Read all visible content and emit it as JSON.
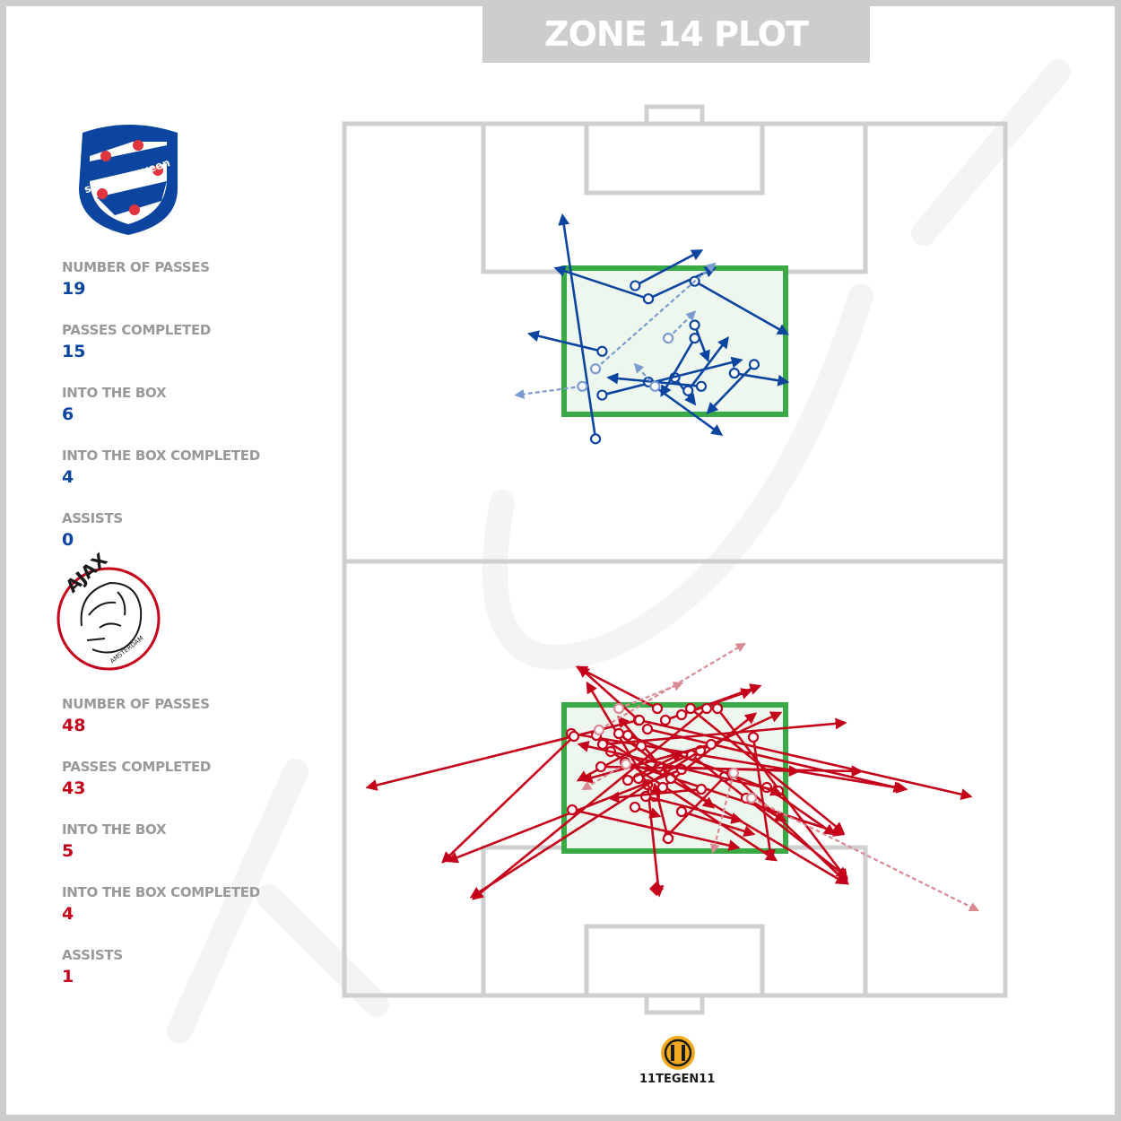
{
  "title": "ZONE 14 PLOT",
  "teams": [
    {
      "crest_text": "sc Heerenveen",
      "color": "#0b45a0",
      "stats": [
        {
          "label": "NUMBER OF PASSES",
          "value": "19"
        },
        {
          "label": "PASSES COMPLETED",
          "value": "15"
        },
        {
          "label": "INTO THE BOX",
          "value": "6"
        },
        {
          "label": "INTO THE BOX COMPLETED",
          "value": "4"
        },
        {
          "label": "ASSISTS",
          "value": "0"
        }
      ]
    },
    {
      "crest_text": "AJAX",
      "crest_subtext": "AMSTERDAM",
      "color": "#c4001a",
      "stats": [
        {
          "label": "NUMBER OF PASSES",
          "value": "48"
        },
        {
          "label": "PASSES COMPLETED",
          "value": "43"
        },
        {
          "label": "INTO THE BOX",
          "value": "5"
        },
        {
          "label": "INTO THE BOX COMPLETED",
          "value": "4"
        },
        {
          "label": "ASSISTS",
          "value": "1"
        }
      ]
    }
  ],
  "credit": "11TEGEN11",
  "colors": {
    "pitch_lines": "#cfcfcf",
    "zone14": "#3aaa46",
    "zone14_fill": "#eef7ee",
    "frame": "#cdcdcd"
  },
  "chart_data": {
    "type": "scatter",
    "description_units": "pitch coordinates 0-100 (x across width, y along length toward attacked goal)",
    "series": [
      {
        "team": "sc Heerenveen",
        "passes": [
          {
            "x1": 38,
            "y1": 28,
            "x2": 33,
            "y2": 79,
            "ok": true
          },
          {
            "x1": 44,
            "y1": 63,
            "x2": 54,
            "y2": 71,
            "ok": true
          },
          {
            "x1": 46,
            "y1": 60,
            "x2": 32,
            "y2": 67,
            "ok": true
          },
          {
            "x1": 46,
            "y1": 60,
            "x2": 56,
            "y2": 67,
            "ok": true
          },
          {
            "x1": 39,
            "y1": 48,
            "x2": 28,
            "y2": 52,
            "ok": true
          },
          {
            "x1": 53,
            "y1": 54,
            "x2": 55,
            "y2": 46,
            "ok": true
          },
          {
            "x1": 59,
            "y1": 43,
            "x2": 67,
            "y2": 41,
            "ok": true
          },
          {
            "x1": 50,
            "y1": 42,
            "x2": 53,
            "y2": 36,
            "ok": true
          },
          {
            "x1": 39,
            "y1": 38,
            "x2": 60,
            "y2": 46,
            "ok": true
          },
          {
            "x1": 46,
            "y1": 41,
            "x2": 57,
            "y2": 29,
            "ok": true
          },
          {
            "x1": 54,
            "y1": 40,
            "x2": 40,
            "y2": 42,
            "ok": true
          },
          {
            "x1": 53,
            "y1": 64,
            "x2": 67,
            "y2": 52,
            "ok": true
          },
          {
            "x1": 62,
            "y1": 45,
            "x2": 55,
            "y2": 34,
            "ok": true
          },
          {
            "x1": 52,
            "y1": 39,
            "x2": 58,
            "y2": 51,
            "ok": true
          },
          {
            "x1": 53,
            "y1": 51,
            "x2": 48,
            "y2": 38,
            "ok": true
          },
          {
            "x1": 36,
            "y1": 40,
            "x2": 26,
            "y2": 38,
            "ok": false
          },
          {
            "x1": 38,
            "y1": 44,
            "x2": 56,
            "y2": 68,
            "ok": false
          },
          {
            "x1": 47,
            "y1": 40,
            "x2": 44,
            "y2": 45,
            "ok": false
          },
          {
            "x1": 49,
            "y1": 51,
            "x2": 53,
            "y2": 57,
            "ok": false
          }
        ]
      },
      {
        "team": "Ajax",
        "passes_completed_count": 43,
        "passes_failed_count": 5,
        "assist": {
          "x1": 47,
          "y1": 39,
          "x2": 47,
          "y2": 13
        }
      }
    ]
  }
}
